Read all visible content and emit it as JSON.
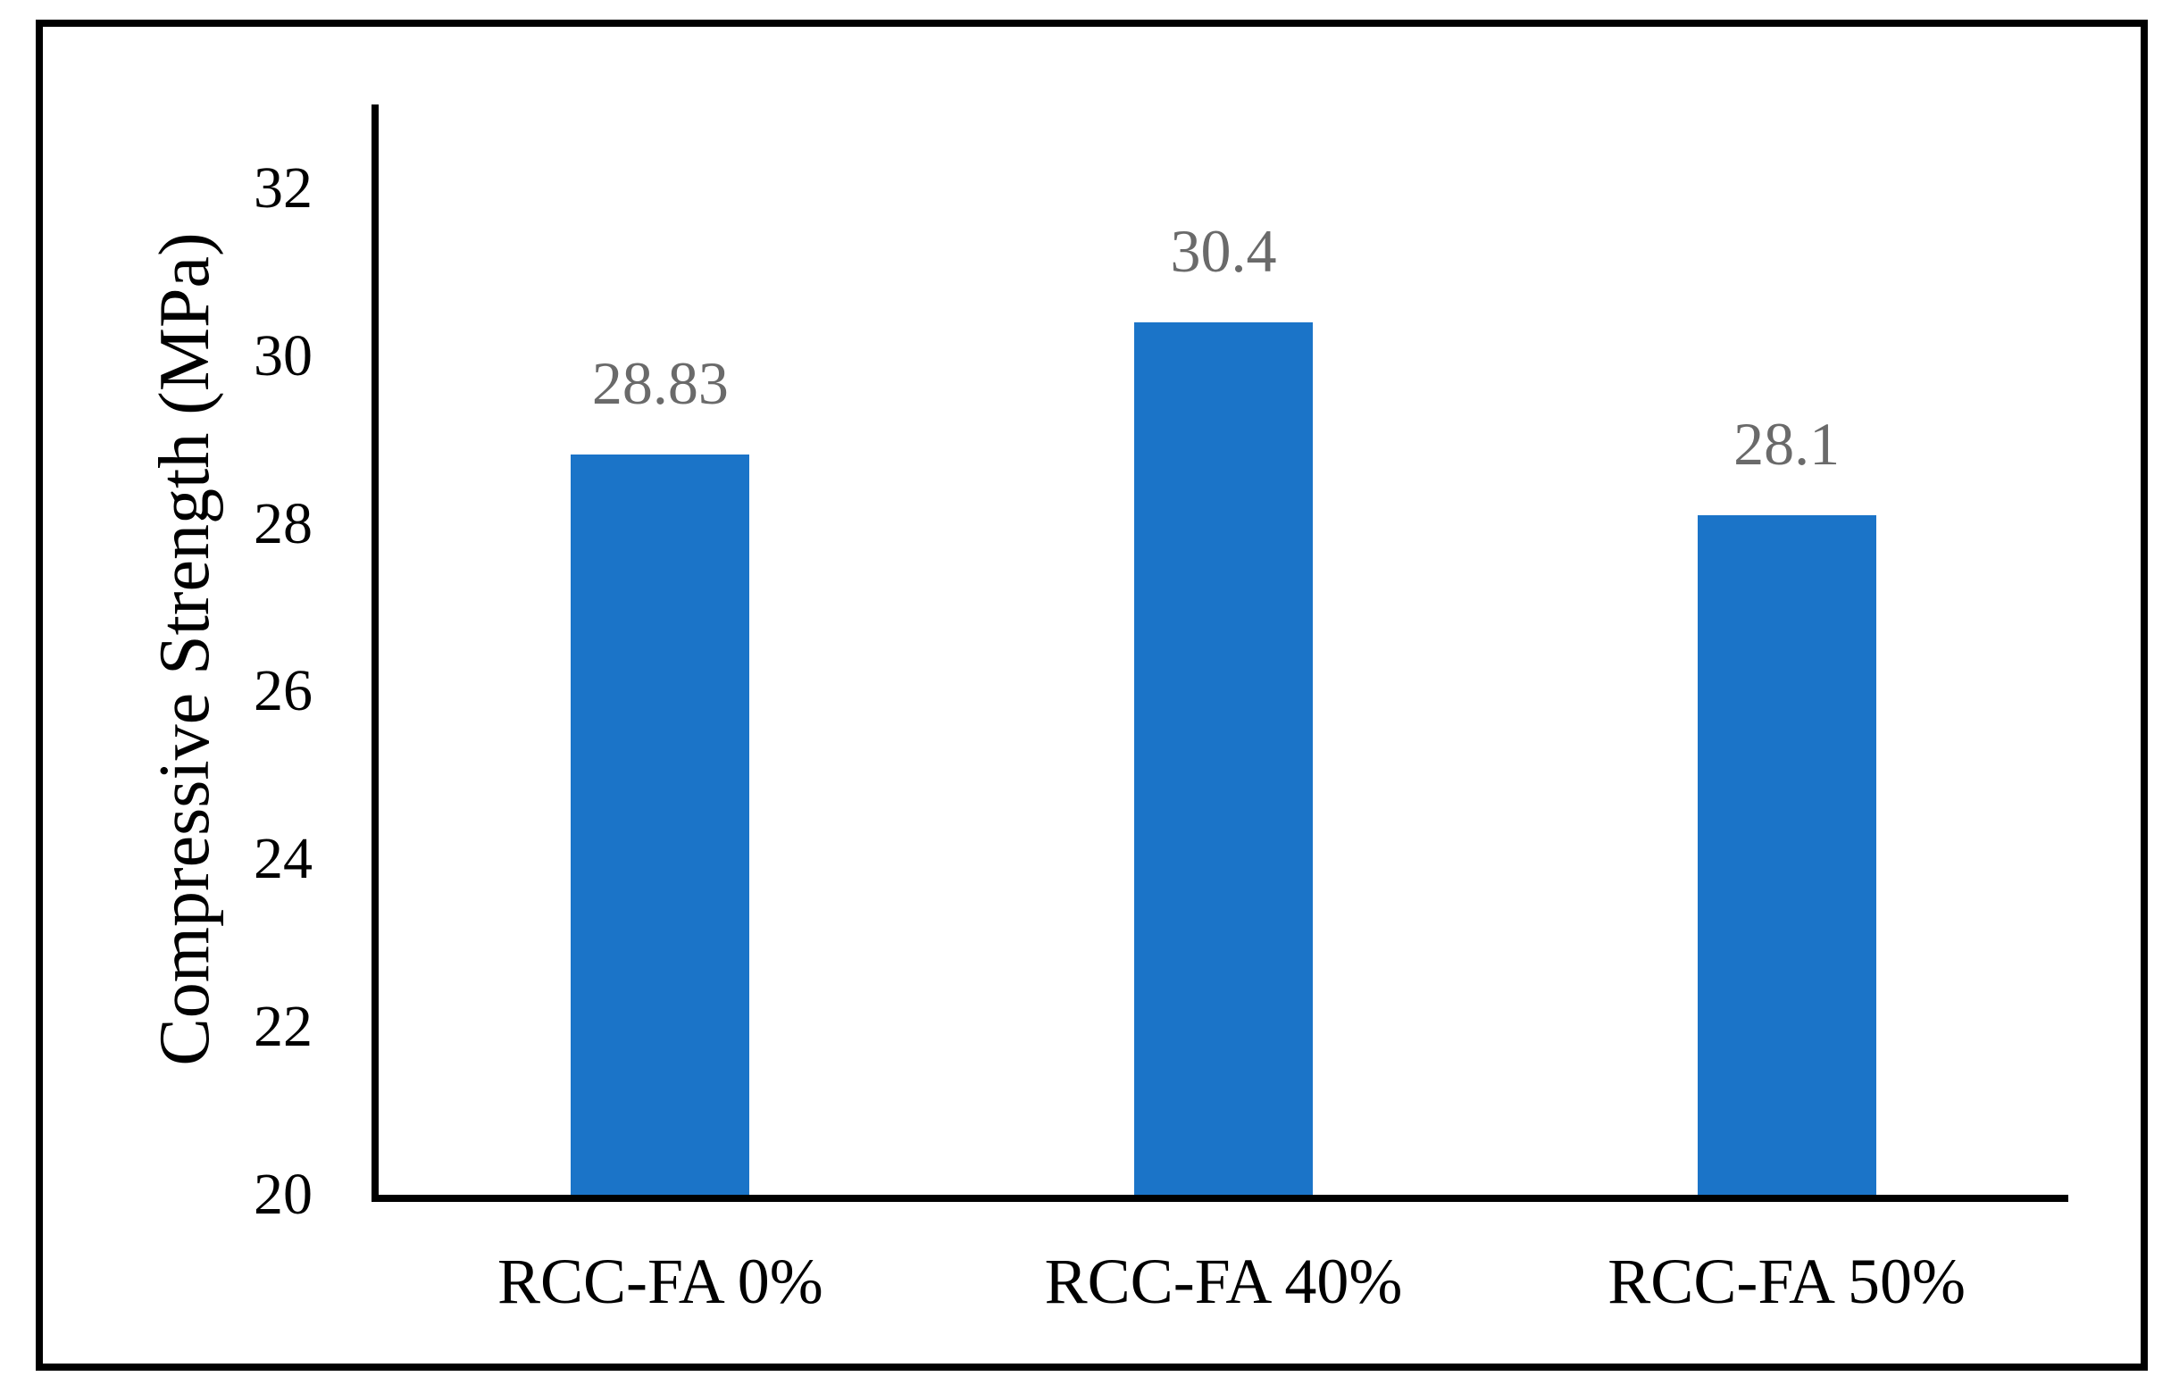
{
  "chart_data": {
    "type": "bar",
    "title": "",
    "categories": [
      "RCC-FA 0%",
      "RCC-FA 40%",
      "RCC-FA 50%"
    ],
    "values": [
      28.83,
      30.4,
      28.1
    ],
    "value_labels": [
      "28.83",
      "30.4",
      "28.1"
    ],
    "xlabel": "",
    "ylabel": "Compressive Strength (MPa)",
    "ylim": [
      20,
      33
    ],
    "yticks": [
      20,
      22,
      24,
      26,
      28,
      30,
      32
    ],
    "grid": false,
    "legend": false,
    "colors": {
      "bar": "#1B74C8",
      "data_label": "#6A6A6A",
      "axis": "#000000",
      "frame": "#000000",
      "background": "#FFFFFF"
    }
  }
}
